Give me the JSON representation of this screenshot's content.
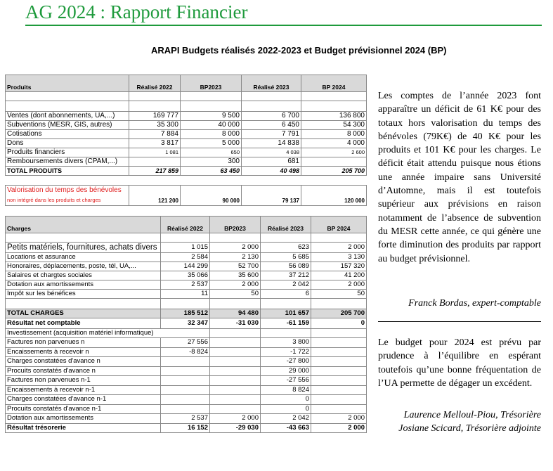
{
  "header": {
    "title": "AG 2024 : Rapport Financier",
    "subtitle": "ARAPI Budgets réalisés 2022-2023 et Budget prévisionnel 2024 (BP)"
  },
  "colors": {
    "title": "#1e9a3c",
    "header_fill": "#d9d9d9",
    "valorisation_text": "#e02020"
  },
  "produits": {
    "columns": [
      "Produits",
      "Réalisé  2022",
      "BP2023",
      "Réalisé 2023",
      "BP 2024"
    ],
    "rows": [
      [
        "",
        "",
        "",
        "",
        ""
      ],
      [
        "",
        "",
        "",
        "",
        ""
      ],
      [
        "Ventes (dont abonnements, UA,...)",
        "169 777",
        "9 500",
        "6 700",
        "136 800"
      ],
      [
        "Subventions (MESR, GIS, autres)",
        "35 300",
        "40 000",
        "6 450",
        "54 300"
      ],
      [
        "Cotisations",
        "7 884",
        "8 000",
        "7 791",
        "8 000"
      ],
      [
        "Dons",
        "3 817",
        "5 000",
        "14 838",
        "4 000"
      ],
      [
        "Produits financiers",
        "1 081",
        "650",
        "4 038",
        "2 600"
      ],
      [
        "Remboursements divers (CPAM,...)",
        "",
        "300",
        "681",
        ""
      ]
    ],
    "total": [
      "TOTAL PRODUITS",
      "217 859",
      "63 450",
      "40 498",
      "205 700"
    ]
  },
  "valorisation": {
    "label": "Valorisation du temps des bénévoles",
    "sublabel": "non intégré dans les produits et charges",
    "values": [
      "121 200",
      "90 000",
      "79 137",
      "120 000"
    ]
  },
  "charges": {
    "columns": [
      "Charges",
      "Réalisé  2022",
      "BP2023",
      "Réalisé 2023",
      "BP 2024"
    ],
    "rows": [
      [
        "",
        "",
        "",
        "",
        ""
      ],
      [
        "Petits matériels, fournitures, achats divers",
        "1 015",
        "2 000",
        "623",
        "2 000"
      ],
      [
        "Locations et assurance",
        "2 584",
        "2 130",
        "5 685",
        "3 130"
      ],
      [
        "Honoraires, déplacements, poste, tél, UA,...",
        "144 299",
        "52 700",
        "56 089",
        "157 320"
      ],
      [
        "Salaires et chargtes sociales",
        "35 066",
        "35 600",
        "37 212",
        "41 200"
      ],
      [
        "Dotation aux amortissements",
        "2 537",
        "2 000",
        "2 042",
        "2 000"
      ],
      [
        "Impôt sur les bénéfices",
        "11",
        "50",
        "6",
        "50"
      ],
      [
        "",
        "",
        "",
        "",
        ""
      ]
    ],
    "total": [
      "TOTAL CHARGES",
      "185 512",
      "94 480",
      "101 657",
      "205 700"
    ],
    "resultat": [
      "Résultat net comptable",
      "32 347",
      "-31 030",
      "-61 159",
      "0"
    ],
    "investissement": "Investissement (acquisition matériel informatique)",
    "tresorerie_rows": [
      [
        "Factures non parvenues n",
        "27 556",
        "",
        "3 800",
        ""
      ],
      [
        "Encaissements à recevoir n",
        "-8 824",
        "",
        "-1 722",
        ""
      ],
      [
        "Charges constatées d'avance n",
        "",
        "",
        "-27 800",
        ""
      ],
      [
        "Procuits constatés d'avance n",
        "",
        "",
        "29 000",
        ""
      ],
      [
        "Factures non parvenues n-1",
        "",
        "",
        "-27 556",
        ""
      ],
      [
        "Encaissements à recevoir n-1",
        "",
        "",
        "8 824",
        ""
      ],
      [
        "Charges constatées d'avance n-1",
        "",
        "",
        "0",
        ""
      ],
      [
        "Procuits constatés d'avance n-1",
        "",
        "",
        "0",
        ""
      ],
      [
        "Dotation aux amortissements",
        "2 537",
        "2 000",
        "2 042",
        "2 000"
      ]
    ],
    "resultat_tresorerie": [
      "Résultat trésorerie",
      "16 152",
      "-29 030",
      "-43 663",
      "2 000"
    ]
  },
  "commentary": {
    "paragraph1": "Les comptes de l’année 2023 font apparaître un déficit de 61 K€ pour des totaux hors valorisation du temps des bénévoles (79K€) de 40 K€ pour les produits et 101 K€ pour les charges. Le déficit était attendu puisque nous étions une année impaire sans Université d’Automne, mais il est toutefois supérieur aux prévisions en raison notamment de l’absence de subvention du MESR cette année, ce qui génère une forte diminution des produits par rapport au budget prévisionnel.",
    "signature1": "Franck Bordas, expert-comptable",
    "paragraph2": "Le budget pour 2024 est prévu par prudence à l’équilibre en espérant toutefois qu’une bonne fréquentation de l’UA permette de dégager un excédent.",
    "signature2_line1": "Laurence Melloul-Piou, Trésorière",
    "signature2_line2": "Josiane Scicard, Trésorière adjointe"
  }
}
